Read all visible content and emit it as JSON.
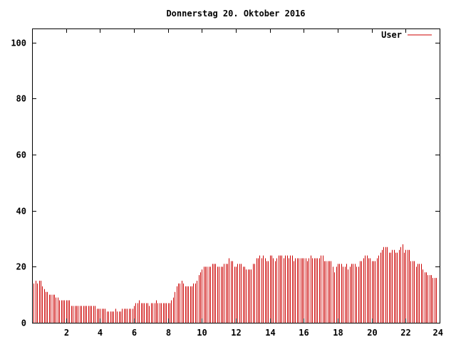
{
  "chart_data": {
    "type": "bar",
    "title": "Donnerstag 20. Oktober 2016",
    "xlabel": "",
    "ylabel": "",
    "xlim": [
      0,
      24
    ],
    "ylim": [
      0,
      105
    ],
    "x_ticks": [
      2,
      4,
      6,
      8,
      10,
      12,
      14,
      16,
      18,
      20,
      22,
      24
    ],
    "y_ticks": [
      0,
      20,
      40,
      60,
      80,
      100
    ],
    "x_tick_labels": [
      "2",
      "4",
      "6",
      "8",
      "10",
      "12",
      "14",
      "16",
      "18",
      "20",
      "22",
      "24"
    ],
    "y_tick_labels": [
      "0",
      "20",
      "40",
      "60",
      "80",
      "100"
    ],
    "grid": false,
    "legend": {
      "position": "top-right",
      "entries": [
        "User"
      ]
    },
    "series": [
      {
        "name": "User",
        "color": "#cc0000",
        "step_hours": 0.1,
        "values": [
          14,
          15,
          14,
          15,
          15,
          13,
          12,
          11,
          11,
          10,
          10,
          10,
          10,
          9,
          9,
          8,
          8,
          8,
          8,
          8,
          8,
          8,
          6,
          6,
          6,
          6,
          6,
          6,
          6,
          6,
          6,
          6,
          6,
          6,
          6,
          6,
          6,
          5,
          5,
          5,
          5,
          5,
          5,
          4,
          4,
          4,
          4,
          4,
          5,
          4,
          4,
          4,
          5,
          5,
          5,
          5,
          5,
          5,
          5,
          6,
          7,
          7,
          8,
          7,
          7,
          7,
          7,
          7,
          6,
          7,
          7,
          7,
          8,
          7,
          7,
          7,
          7,
          7,
          7,
          7,
          7,
          8,
          9,
          11,
          13,
          14,
          14,
          15,
          14,
          13,
          13,
          13,
          13,
          13,
          14,
          14,
          15,
          17,
          18,
          19,
          20,
          20,
          20,
          20,
          20,
          21,
          21,
          21,
          20,
          20,
          20,
          20,
          21,
          21,
          21,
          23,
          22,
          22,
          20,
          20,
          21,
          21,
          21,
          20,
          20,
          19,
          19,
          19,
          19,
          21,
          21,
          23,
          23,
          24,
          23,
          24,
          23,
          22,
          22,
          24,
          24,
          23,
          22,
          23,
          24,
          24,
          24,
          23,
          24,
          24,
          23,
          24,
          24,
          22,
          23,
          23,
          23,
          23,
          23,
          23,
          23,
          22,
          23,
          24,
          23,
          23,
          23,
          23,
          23,
          24,
          24,
          22,
          22,
          22,
          22,
          22,
          20,
          18,
          20,
          21,
          21,
          21,
          20,
          20,
          21,
          19,
          20,
          21,
          21,
          21,
          20,
          20,
          22,
          22,
          23,
          24,
          24,
          23,
          23,
          22,
          22,
          22,
          23,
          24,
          25,
          26,
          27,
          27,
          27,
          25,
          25,
          26,
          26,
          25,
          25,
          26,
          27,
          28,
          25,
          26,
          26,
          26,
          22,
          22,
          22,
          20,
          21,
          21,
          21,
          19,
          18,
          18,
          17,
          17,
          17,
          16,
          16,
          16
        ]
      }
    ]
  }
}
